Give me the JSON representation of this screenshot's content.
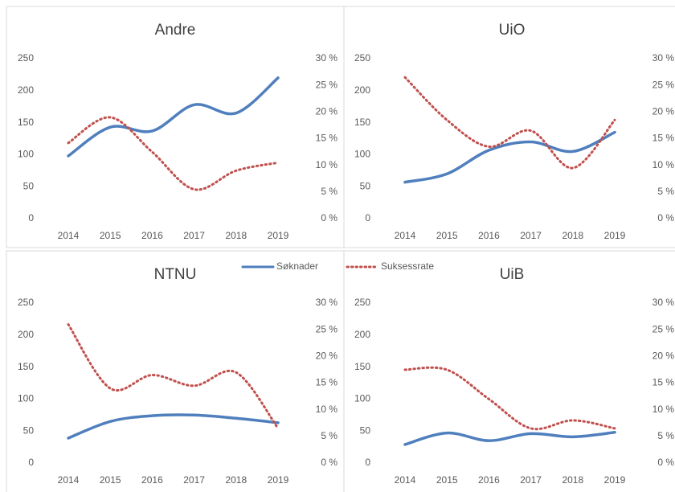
{
  "chart_data": [
    {
      "type": "line",
      "title": "Andre",
      "categories": [
        "2014",
        "2015",
        "2016",
        "2017",
        "2018",
        "2019"
      ],
      "ylim": [
        0,
        250
      ],
      "yticks": [
        0,
        50,
        100,
        150,
        200,
        250
      ],
      "y2lim": [
        0,
        30
      ],
      "y2ticks": [
        {
          "value": 0,
          "label": "0 %"
        },
        {
          "value": 5,
          "label": "5 %"
        },
        {
          "value": 10,
          "label": "10 %"
        },
        {
          "value": 15,
          "label": "15 %"
        },
        {
          "value": 20,
          "label": "20 %"
        },
        {
          "value": 25,
          "label": "25 %"
        },
        {
          "value": 30,
          "label": "30 %"
        }
      ],
      "series": [
        {
          "name": "Søknader",
          "color": "#4f7fbd",
          "values": [
            98,
            143,
            137,
            178,
            165,
            220
          ]
        },
        {
          "name": "Suksessrate",
          "color": "#c0504d",
          "axis": "y2",
          "dashed": true,
          "values": [
            14.2,
            19,
            12.5,
            5.5,
            9,
            10.5
          ]
        }
      ]
    },
    {
      "type": "line",
      "title": "UiO",
      "categories": [
        "2014",
        "2015",
        "2016",
        "2017",
        "2018",
        "2019"
      ],
      "ylim": [
        0,
        250
      ],
      "yticks": [
        0,
        50,
        100,
        150,
        200,
        250
      ],
      "y2lim": [
        0,
        30
      ],
      "y2ticks": [
        {
          "value": 0,
          "label": "0 %"
        },
        {
          "value": 5,
          "label": "5 %"
        },
        {
          "value": 10,
          "label": "10 %"
        },
        {
          "value": 15,
          "label": "15 %"
        },
        {
          "value": 20,
          "label": "20 %"
        },
        {
          "value": 25,
          "label": "25 %"
        },
        {
          "value": 30,
          "label": "30 %"
        }
      ],
      "series": [
        {
          "name": "Søknader",
          "color": "#4f7fbd",
          "values": [
            57,
            70,
            107,
            120,
            105,
            135
          ]
        },
        {
          "name": "Suksessrate",
          "color": "#c0504d",
          "axis": "y2",
          "dashed": true,
          "values": [
            26.5,
            18.5,
            13.5,
            16.5,
            9.5,
            18.5
          ]
        }
      ]
    },
    {
      "type": "line",
      "title": "NTNU",
      "categories": [
        "2014",
        "2015",
        "2016",
        "2017",
        "2018",
        "2019"
      ],
      "ylim": [
        0,
        250
      ],
      "yticks": [
        0,
        50,
        100,
        150,
        200,
        250
      ],
      "y2lim": [
        0,
        30
      ],
      "y2ticks": [
        {
          "value": 0,
          "label": "0 %"
        },
        {
          "value": 5,
          "label": "5 %"
        },
        {
          "value": 10,
          "label": "10 %"
        },
        {
          "value": 15,
          "label": "15 %"
        },
        {
          "value": 20,
          "label": "20 %"
        },
        {
          "value": 25,
          "label": "25 %"
        },
        {
          "value": 30,
          "label": "30 %"
        }
      ],
      "series": [
        {
          "name": "Søknader",
          "color": "#4f7fbd",
          "values": [
            39,
            65,
            74,
            75,
            70,
            63
          ]
        },
        {
          "name": "Suksessrate",
          "color": "#c0504d",
          "axis": "y2",
          "dashed": true,
          "values": [
            26,
            14,
            16.5,
            14.5,
            17,
            6.5
          ]
        }
      ]
    },
    {
      "type": "line",
      "title": "UiB",
      "categories": [
        "2014",
        "2015",
        "2016",
        "2017",
        "2018",
        "2019"
      ],
      "ylim": [
        0,
        250
      ],
      "yticks": [
        0,
        50,
        100,
        150,
        200,
        250
      ],
      "y2lim": [
        0,
        30
      ],
      "y2ticks": [
        {
          "value": 0,
          "label": "0 %"
        },
        {
          "value": 5,
          "label": "5 %"
        },
        {
          "value": 10,
          "label": "10 %"
        },
        {
          "value": 15,
          "label": "15 %"
        },
        {
          "value": 20,
          "label": "20 %"
        },
        {
          "value": 25,
          "label": "25 %"
        },
        {
          "value": 30,
          "label": "30 %"
        }
      ],
      "series": [
        {
          "name": "Søknader",
          "color": "#4f7fbd",
          "values": [
            29,
            47,
            35,
            46,
            41,
            48
          ]
        },
        {
          "name": "Suksessrate",
          "color": "#c0504d",
          "axis": "y2",
          "dashed": true,
          "values": [
            17.5,
            17.5,
            12,
            6.5,
            8,
            6.5
          ]
        }
      ]
    }
  ]
}
